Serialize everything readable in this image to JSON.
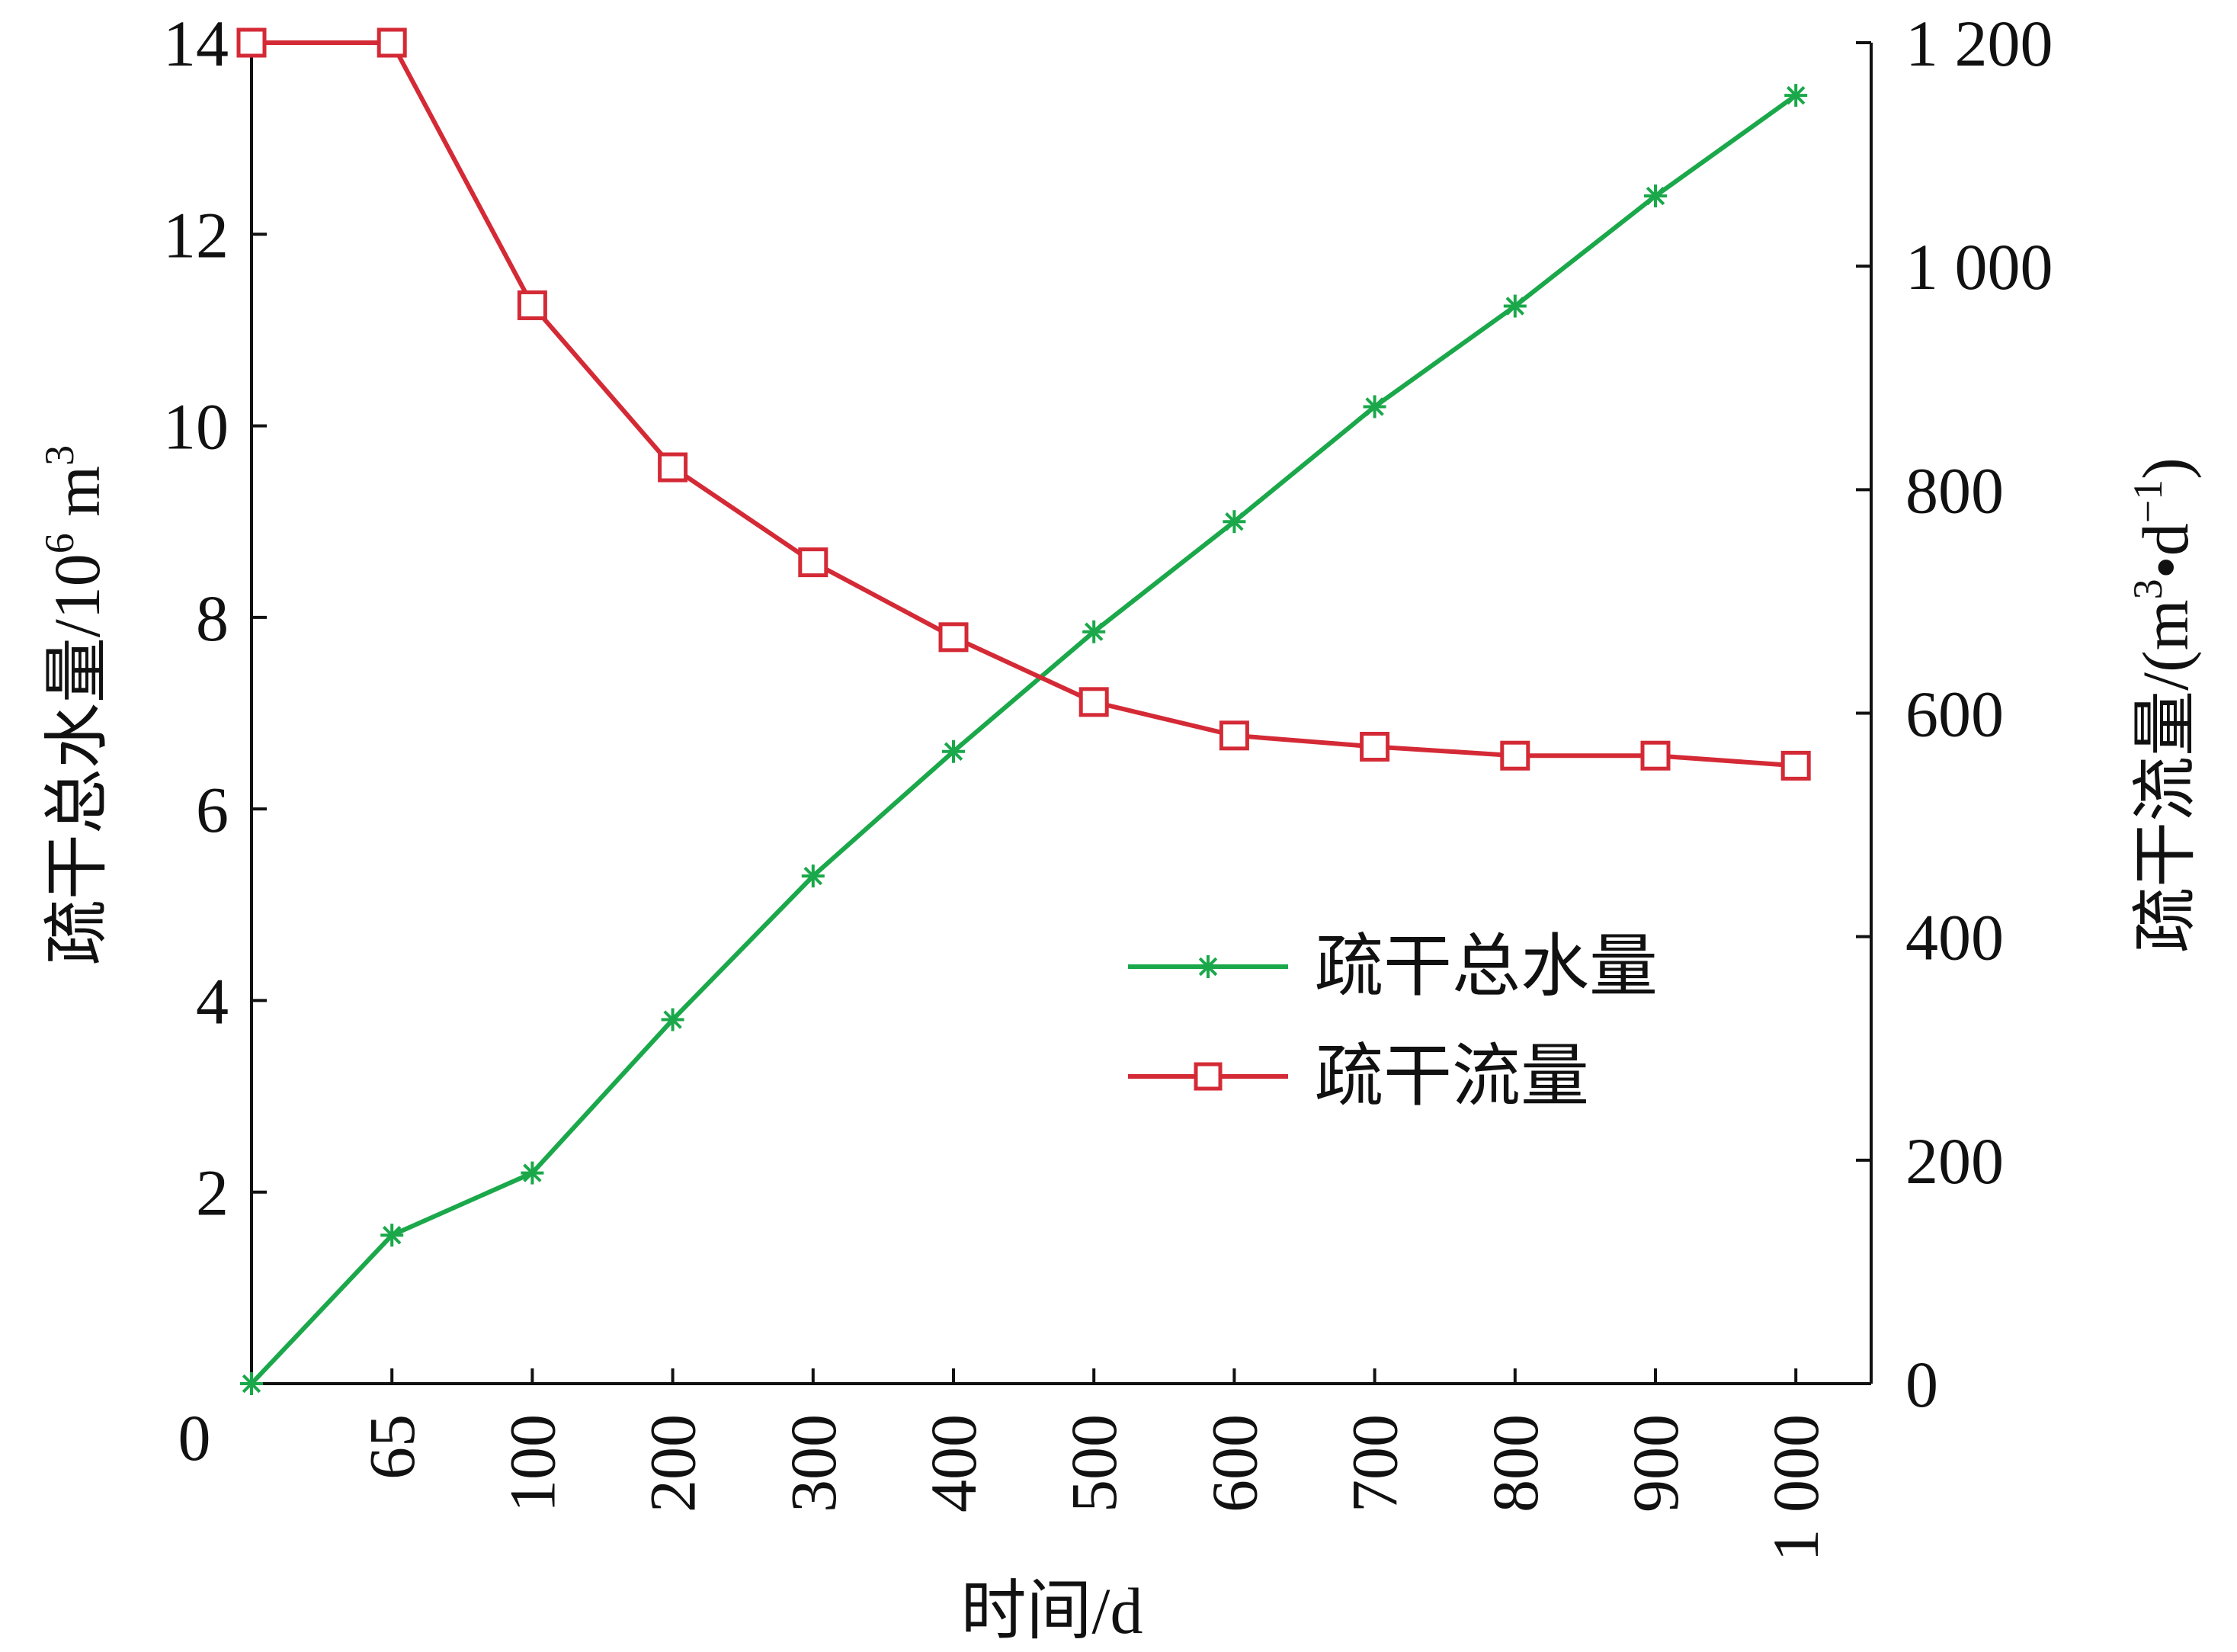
{
  "chart_data": {
    "type": "line",
    "title": "",
    "xlabel": "时间/d",
    "ylabel_left": {
      "main": "疏干总水量/10",
      "sup1": "6",
      "mid": " m",
      "sup2": "3"
    },
    "ylabel_right": {
      "pre": "疏干流量/(m",
      "sup1": "3",
      "dot": "•",
      "mid": "d",
      "sup2": "−1",
      "post": ")"
    },
    "x_tick_labels": [
      "65",
      "100",
      "200",
      "300",
      "400",
      "500",
      "600",
      "700",
      "800",
      "900",
      "1 000"
    ],
    "x_origin_label": "0",
    "y_left_ticks": [
      "2",
      "4",
      "6",
      "8",
      "10",
      "12",
      "14"
    ],
    "y_left_range": [
      0,
      14
    ],
    "y_right_ticks": [
      "0",
      "200",
      "400",
      "600",
      "800",
      "1 000",
      "1 200"
    ],
    "y_right_range": [
      0,
      1200
    ],
    "categories": [
      "0",
      "65",
      "100",
      "200",
      "300",
      "400",
      "500",
      "600",
      "700",
      "800",
      "900",
      "1 000"
    ],
    "series": [
      {
        "name": "疏干总水量",
        "axis": "left",
        "color": "#1aa84a",
        "marker": "asterisk",
        "values": [
          0,
          1.55,
          2.2,
          3.8,
          5.3,
          6.6,
          7.85,
          9.0,
          10.2,
          11.25,
          12.4,
          13.45
        ]
      },
      {
        "name": "疏干流量",
        "axis": "right",
        "color": "#d42a36",
        "marker": "square",
        "values": [
          1200,
          1200,
          965,
          820,
          735,
          668,
          610,
          580,
          570,
          562,
          562,
          553
        ]
      }
    ],
    "legend_position": "center-right",
    "grid": false
  }
}
